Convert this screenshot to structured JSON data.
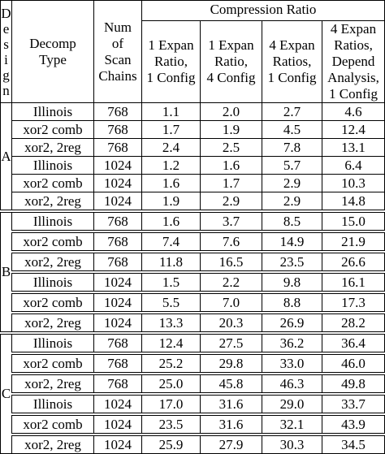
{
  "table": {
    "headers": {
      "design": [
        "D",
        "e",
        "s",
        "i",
        "g",
        "n"
      ],
      "decomp_type": [
        "Decomp",
        "Type"
      ],
      "num_scan_chains": [
        "Num",
        "of",
        "Scan",
        "Chains"
      ],
      "compression_ratio": "Compression Ratio",
      "ratio_columns": [
        [
          "1 Expan",
          "Ratio,",
          "1 Config"
        ],
        [
          "1 Expan",
          "Ratio,",
          "4 Config"
        ],
        [
          "4 Expan",
          "Ratios,",
          "1 Config"
        ],
        [
          "4 Expan",
          "Ratios,",
          "Depend",
          "Analysis,",
          "1 Config"
        ]
      ]
    },
    "groups": [
      {
        "design": "A",
        "rows": [
          {
            "type": "Illinois",
            "chains": "768",
            "values": [
              "1.1",
              "2.0",
              "2.7",
              "4.6"
            ]
          },
          {
            "type": "xor2 comb",
            "chains": "768",
            "values": [
              "1.7",
              "1.9",
              "4.5",
              "12.4"
            ]
          },
          {
            "type": "xor2, 2reg",
            "chains": "768",
            "values": [
              "2.4",
              "2.5",
              "7.8",
              "13.1"
            ]
          },
          {
            "type": "Illinois",
            "chains": "1024",
            "values": [
              "1.2",
              "1.6",
              "5.7",
              "6.4"
            ]
          },
          {
            "type": "xor2 comb",
            "chains": "1024",
            "values": [
              "1.6",
              "1.7",
              "2.9",
              "10.3"
            ]
          },
          {
            "type": "xor2, 2reg",
            "chains": "1024",
            "values": [
              "1.9",
              "2.9",
              "2.9",
              "14.8"
            ]
          }
        ]
      },
      {
        "design": "B",
        "rows": [
          {
            "type": "Illinois",
            "chains": "768",
            "values": [
              "1.6",
              "3.7",
              "8.5",
              "15.0"
            ]
          },
          {
            "type": "xor2 comb",
            "chains": "768",
            "values": [
              "7.4",
              "7.6",
              "14.9",
              "21.9"
            ]
          },
          {
            "type": "xor2, 2reg",
            "chains": "768",
            "values": [
              "11.8",
              "16.5",
              "23.5",
              "26.6"
            ]
          },
          {
            "type": "Illinois",
            "chains": "1024",
            "values": [
              "1.5",
              "2.2",
              "9.8",
              "16.1"
            ]
          },
          {
            "type": "xor2 comb",
            "chains": "1024",
            "values": [
              "5.5",
              "7.0",
              "8.8",
              "17.3"
            ]
          },
          {
            "type": "xor2, 2reg",
            "chains": "1024",
            "values": [
              "13.3",
              "20.3",
              "26.9",
              "28.2"
            ]
          }
        ]
      },
      {
        "design": "C",
        "rows": [
          {
            "type": "Illinois",
            "chains": "768",
            "values": [
              "12.4",
              "27.5",
              "36.2",
              "36.4"
            ]
          },
          {
            "type": "xor2 comb",
            "chains": "768",
            "values": [
              "25.2",
              "29.8",
              "33.0",
              "46.0"
            ]
          },
          {
            "type": "xor2, 2reg",
            "chains": "768",
            "values": [
              "25.0",
              "45.8",
              "46.3",
              "49.8"
            ]
          },
          {
            "type": "Illinois",
            "chains": "1024",
            "values": [
              "17.0",
              "31.6",
              "29.0",
              "33.7"
            ]
          },
          {
            "type": "xor2 comb",
            "chains": "1024",
            "values": [
              "23.5",
              "31.6",
              "32.1",
              "43.9"
            ]
          },
          {
            "type": "xor2, 2reg",
            "chains": "1024",
            "values": [
              "25.9",
              "27.9",
              "30.3",
              "34.5"
            ]
          }
        ]
      }
    ]
  }
}
